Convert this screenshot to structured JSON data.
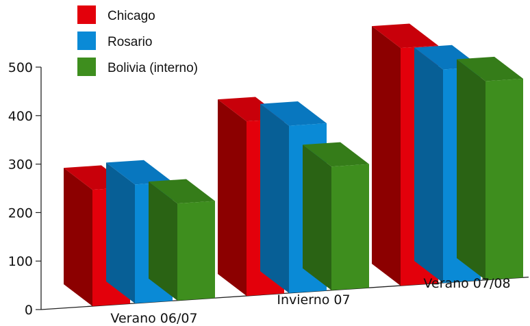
{
  "chart_data": {
    "type": "bar",
    "categories": [
      "Verano 06/07",
      "Invierno 07",
      "Verano 07/08"
    ],
    "series": [
      {
        "name": "Chicago",
        "values": [
          240,
          360,
          490
        ]
      },
      {
        "name": "Rosario",
        "values": [
          245,
          345,
          440
        ]
      },
      {
        "name": "Bolivia (interno)",
        "values": [
          200,
          255,
          410
        ]
      }
    ],
    "ylim": [
      0,
      500
    ],
    "yticks": [
      "0",
      "100",
      "200",
      "300",
      "400",
      "500"
    ],
    "legend": "top-left",
    "grid": false
  },
  "colors": {
    "Chicago": {
      "front": "#e3000b",
      "side": "#8c0000",
      "top": "#c8000a"
    },
    "Rosario": {
      "front": "#0a8ad6",
      "side": "#075f96",
      "top": "#0877bf"
    },
    "Bolivia (interno)": {
      "front": "#3e8e1e",
      "side": "#2a6314",
      "top": "#357c19"
    }
  }
}
